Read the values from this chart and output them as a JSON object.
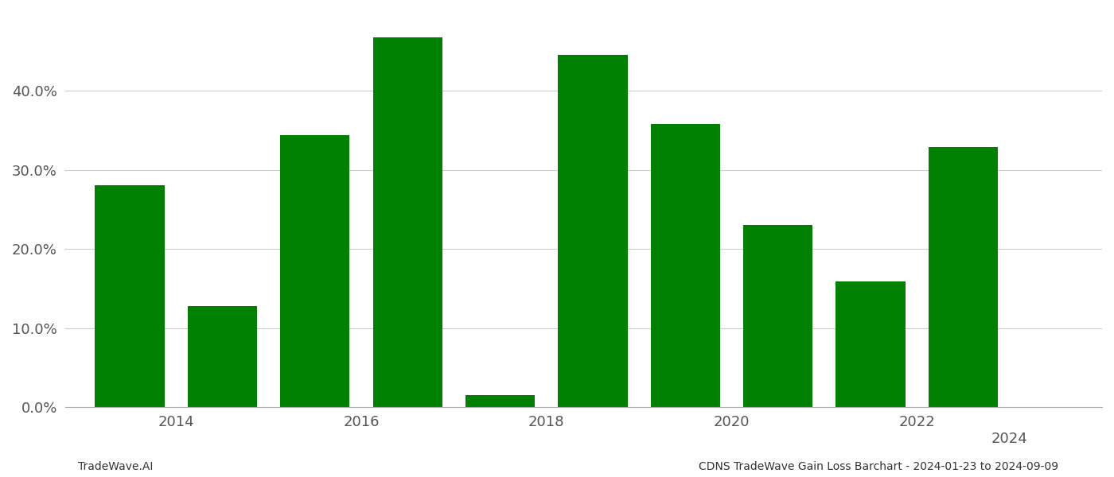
{
  "bar_data": [
    {
      "x": 0,
      "value": 0.281
    },
    {
      "x": 1,
      "value": 0.128
    },
    {
      "x": 2,
      "value": 0.344
    },
    {
      "x": 3,
      "value": 0.468
    },
    {
      "x": 4,
      "value": 0.016
    },
    {
      "x": 5,
      "value": 0.446
    },
    {
      "x": 6,
      "value": 0.358
    },
    {
      "x": 7,
      "value": 0.231
    },
    {
      "x": 8,
      "value": 0.159
    },
    {
      "x": 9,
      "value": 0.329
    }
  ],
  "xtick_positions": [
    0.5,
    2.5,
    4.5,
    6.5,
    8.5
  ],
  "xtick_labels": [
    "2014",
    "2016",
    "2018",
    "2020",
    "2022"
  ],
  "bar_color": "#008000",
  "background_color": "#ffffff",
  "grid_color": "#cccccc",
  "ylim": [
    0,
    0.5
  ],
  "yticks": [
    0.0,
    0.1,
    0.2,
    0.3,
    0.4
  ],
  "footer_left": "TradeWave.AI",
  "footer_right": "CDNS TradeWave Gain Loss Barchart - 2024-01-23 to 2024-09-09",
  "tick_fontsize": 13,
  "footer_fontsize": 10,
  "bar_width": 0.75
}
